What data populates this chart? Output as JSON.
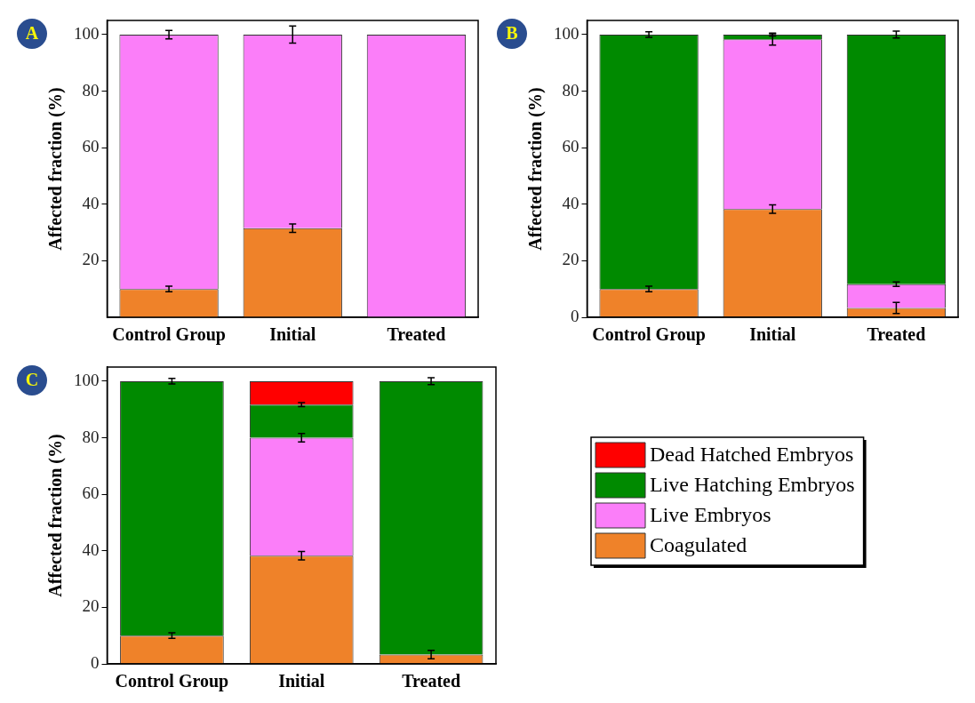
{
  "chart_data": [
    {
      "type": "bar",
      "title": "A",
      "ylabel": "Affected fraction (%)",
      "categories": [
        "Control Group",
        "Initial",
        "Treated"
      ],
      "stacked": true,
      "ylim": [
        0,
        105
      ],
      "yticks": [
        20,
        40,
        60,
        80,
        100
      ],
      "grid": false,
      "legend": false,
      "series": [
        {
          "color": "#ef8229",
          "values": [
            10,
            31.5,
            null
          ],
          "errors": [
            1,
            1.5,
            null
          ]
        },
        {
          "color": "#fb7ef9",
          "values": [
            90,
            68.5,
            100
          ],
          "errors": [
            1.5,
            3,
            null
          ]
        }
      ]
    },
    {
      "type": "bar",
      "title": "B",
      "ylabel": "Affected fraction (%)",
      "categories": [
        "Control Group",
        "Initial",
        "Treated"
      ],
      "stacked": true,
      "ylim": [
        0,
        105
      ],
      "yticks": [
        0,
        20,
        40,
        60,
        80,
        100
      ],
      "grid": false,
      "legend": false,
      "series": [
        {
          "color": "#ef8229",
          "values": [
            10,
            38.3,
            3.3
          ],
          "errors": [
            1,
            1.5,
            2
          ]
        },
        {
          "color": "#fb7ef9",
          "values": [
            null,
            60,
            8.4
          ],
          "errors": [
            null,
            2,
            0.8
          ]
        },
        {
          "color": "#008a00",
          "values": [
            90,
            1.7,
            88.3
          ],
          "errors": [
            1,
            0.5,
            1.2
          ]
        }
      ]
    },
    {
      "type": "bar",
      "title": "C",
      "ylabel": "Affected fraction (%)",
      "categories": [
        "Control Group",
        "Initial",
        "Treated"
      ],
      "stacked": true,
      "ylim": [
        0,
        105
      ],
      "yticks": [
        0,
        20,
        40,
        60,
        80,
        100
      ],
      "grid": false,
      "legend": "right",
      "series": [
        {
          "name": "Coagulated",
          "color": "#ef8229",
          "values": [
            10,
            38.3,
            3.3
          ],
          "errors": [
            1,
            1.5,
            1.5
          ]
        },
        {
          "name": "Live Embryos",
          "color": "#fb7ef9",
          "values": [
            null,
            41.7,
            null
          ],
          "errors": [
            null,
            1.5,
            null
          ]
        },
        {
          "name": "Live Hatching Embryos",
          "color": "#008a00",
          "values": [
            90,
            11.7,
            96.7
          ],
          "errors": [
            1,
            0.7,
            1.2
          ]
        },
        {
          "name": "Dead Hatched Embryos",
          "color": "#ff0000",
          "values": [
            null,
            8.3,
            null
          ]
        }
      ]
    }
  ]
}
